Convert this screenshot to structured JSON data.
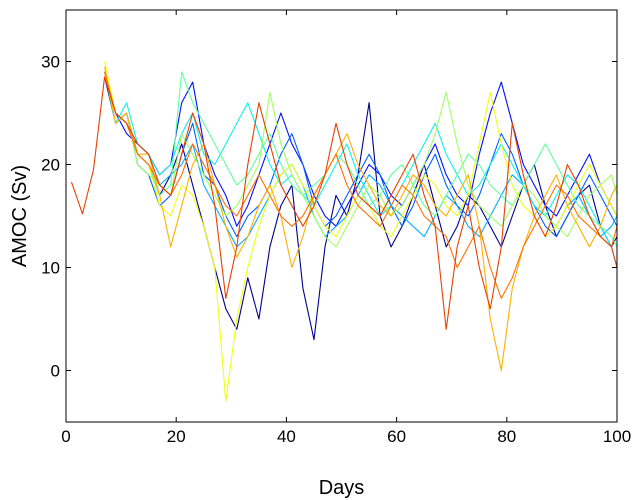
{
  "chart_data": {
    "type": "line",
    "title": "",
    "xlabel": "Days",
    "ylabel": "AMOC (Sv)",
    "xlim": [
      0,
      100
    ],
    "ylim": [
      -5,
      35
    ],
    "xticks": [
      0,
      20,
      40,
      60,
      80,
      100
    ],
    "yticks": [
      0,
      10,
      20,
      30
    ],
    "grid": false,
    "legend": "none",
    "x": [
      1,
      3,
      5,
      7,
      9,
      11,
      13,
      15,
      17,
      19,
      21,
      23,
      25,
      27,
      29,
      31,
      33,
      35,
      37,
      39,
      41,
      43,
      45,
      47,
      49,
      51,
      53,
      55,
      57,
      59,
      61,
      63,
      65,
      67,
      69,
      71,
      73,
      75,
      77,
      79,
      81,
      83,
      85,
      87,
      89,
      91,
      93,
      95,
      97,
      99,
      100
    ],
    "series": [
      {
        "color": "#00008f",
        "values": [
          null,
          null,
          null,
          28.5,
          24,
          25,
          21,
          20,
          17,
          19,
          22,
          18,
          14,
          10,
          6,
          4,
          9,
          5,
          12,
          16,
          18,
          8,
          3,
          12,
          17,
          15,
          19,
          26,
          15,
          12,
          14,
          17,
          20,
          16,
          12,
          14,
          17,
          16,
          14,
          12,
          15,
          18,
          20,
          16,
          13,
          15,
          17,
          18,
          14,
          12,
          13
        ]
      },
      {
        "color": "#0010ff",
        "values": [
          null,
          null,
          null,
          28.5,
          25,
          23,
          22,
          21,
          19,
          20,
          26,
          28,
          22,
          19,
          17,
          14,
          16,
          19,
          22,
          25,
          22,
          20,
          17,
          15,
          14,
          16,
          18,
          20,
          19,
          17,
          16,
          18,
          20,
          22,
          19,
          17,
          16,
          21,
          25,
          28,
          24,
          20,
          18,
          16,
          15,
          17,
          19,
          21,
          18,
          16,
          15
        ]
      },
      {
        "color": "#0060ff",
        "values": [
          null,
          null,
          null,
          29,
          24,
          25,
          20,
          19,
          16,
          17,
          21,
          24,
          19,
          18,
          15,
          13,
          15,
          16,
          18,
          21,
          23,
          20,
          16,
          14,
          15,
          17,
          19,
          21,
          19,
          16,
          14,
          16,
          19,
          21,
          18,
          16,
          15,
          17,
          20,
          23,
          21,
          18,
          16,
          14,
          13,
          15,
          17,
          19,
          17,
          15,
          14
        ]
      },
      {
        "color": "#00b0ff",
        "values": [
          null,
          null,
          null,
          29,
          25,
          24,
          21,
          20,
          18,
          19,
          20,
          22,
          18,
          16,
          14,
          12,
          13,
          15,
          17,
          19,
          20,
          18,
          15,
          13,
          14,
          15,
          17,
          19,
          18,
          16,
          15,
          14,
          13,
          15,
          17,
          16,
          14,
          13,
          15,
          17,
          19,
          18,
          16,
          15,
          14,
          16,
          17,
          15,
          13,
          14,
          15
        ]
      },
      {
        "color": "#10f0f0",
        "values": [
          null,
          null,
          null,
          29,
          24,
          26,
          22,
          21,
          19,
          20,
          23,
          25,
          21,
          20,
          22,
          24,
          26,
          23,
          20,
          18,
          19,
          17,
          16,
          18,
          20,
          22,
          19,
          17,
          15,
          16,
          18,
          20,
          22,
          24,
          21,
          19,
          17,
          18,
          20,
          22,
          20,
          18,
          16,
          15,
          17,
          19,
          18,
          16,
          14,
          12,
          10
        ]
      },
      {
        "color": "#60ffa0",
        "values": [
          null,
          null,
          null,
          28.5,
          25,
          24,
          21,
          20,
          17,
          18,
          29,
          26,
          24,
          22,
          20,
          18,
          19,
          21,
          23,
          20,
          18,
          17,
          18,
          19,
          21,
          20,
          18,
          16,
          17,
          19,
          20,
          18,
          16,
          15,
          17,
          19,
          21,
          20,
          18,
          17,
          16,
          18,
          20,
          22,
          20,
          18,
          16,
          15,
          14,
          13,
          12
        ]
      },
      {
        "color": "#a0ff60",
        "values": [
          null,
          null,
          null,
          29,
          24,
          25,
          20,
          19,
          18,
          17,
          23,
          21,
          19,
          17,
          15,
          16,
          18,
          20,
          27,
          22,
          19,
          17,
          15,
          13,
          12,
          14,
          16,
          18,
          17,
          15,
          16,
          18,
          20,
          23,
          27,
          22,
          18,
          16,
          15,
          14,
          16,
          18,
          17,
          15,
          14,
          13,
          15,
          17,
          18,
          19,
          17
        ]
      },
      {
        "color": "#f0ff10",
        "values": [
          null,
          null,
          null,
          30,
          25,
          24,
          21,
          20,
          16,
          15,
          18,
          17,
          14,
          10,
          -3,
          5,
          10,
          14,
          17,
          19,
          20,
          18,
          16,
          14,
          13,
          15,
          17,
          16,
          14,
          13,
          15,
          17,
          19,
          18,
          16,
          15,
          17,
          22,
          27,
          22,
          18,
          16,
          15,
          13,
          14,
          16,
          18,
          20,
          18,
          16,
          15
        ]
      },
      {
        "color": "#ffb000",
        "values": [
          null,
          null,
          null,
          29.5,
          24,
          25,
          21,
          21,
          17,
          12,
          16,
          20,
          22,
          18,
          14,
          11,
          13,
          16,
          18,
          15,
          10,
          13,
          17,
          19,
          21,
          23,
          20,
          18,
          16,
          15,
          17,
          19,
          18,
          16,
          15,
          17,
          19,
          14,
          5,
          0,
          8,
          12,
          15,
          17,
          19,
          16,
          14,
          12,
          14,
          17,
          18
        ]
      },
      {
        "color": "#ff7000",
        "values": [
          null,
          null,
          null,
          29,
          25,
          24,
          21,
          20,
          18,
          17,
          19,
          22,
          20,
          18,
          16,
          15,
          17,
          19,
          17,
          15,
          14,
          15,
          17,
          19,
          21,
          18,
          16,
          15,
          14,
          16,
          18,
          17,
          15,
          14,
          13,
          10,
          12,
          14,
          10,
          7,
          9,
          12,
          14,
          16,
          18,
          17,
          15,
          14,
          13,
          12,
          14
        ]
      },
      {
        "color": "#e84000",
        "values": [
          18.3,
          15.2,
          19.5,
          28.5,
          25,
          24,
          22,
          21,
          18,
          17,
          21,
          25,
          22,
          16,
          7,
          12,
          20,
          26,
          22,
          18,
          16,
          14,
          16,
          19,
          24,
          20,
          17,
          16,
          15,
          17,
          19,
          21,
          17,
          14,
          4,
          12,
          16,
          10,
          6,
          12,
          24,
          19,
          15,
          13,
          16,
          20,
          18,
          15,
          13,
          12,
          10
        ]
      }
    ]
  }
}
